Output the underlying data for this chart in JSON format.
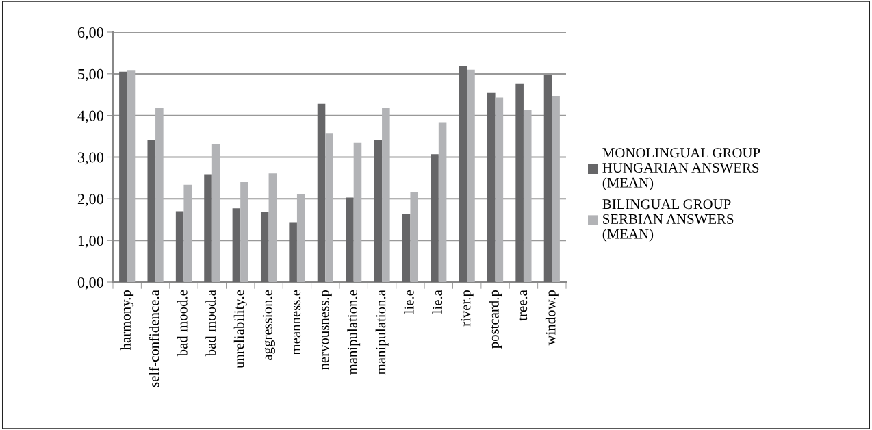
{
  "chart_data": {
    "type": "bar",
    "categories": [
      "harmony.p",
      "self-confidence.a",
      "bad mood.e",
      "bad mood.a",
      "unreliability.e",
      "aggression.e",
      "meanness.e",
      "nervousness.p",
      "manipulation.e",
      "manipulation.a",
      "lie.e",
      "lie.a",
      "river.p",
      "postcard.p",
      "tree.a",
      "window.p"
    ],
    "series": [
      {
        "name": "MONOLINGUAL GROUP HUNGARIAN ANSWERS (MEAN)",
        "color": "#666668",
        "values": [
          5.05,
          3.42,
          1.7,
          2.59,
          1.77,
          1.68,
          1.44,
          4.28,
          2.03,
          3.42,
          1.63,
          3.07,
          5.19,
          4.54,
          4.77,
          4.97
        ]
      },
      {
        "name": "BILINGUAL GROUP SERBIAN ANSWERS (MEAN)",
        "color": "#b2b3b6",
        "values": [
          5.09,
          4.19,
          2.34,
          3.32,
          2.4,
          2.61,
          2.11,
          3.58,
          3.34,
          4.19,
          2.17,
          3.84,
          5.1,
          4.43,
          4.13,
          4.47
        ]
      }
    ],
    "ylim": [
      0,
      6
    ],
    "yticks": [
      {
        "value": 0,
        "label": "0,00"
      },
      {
        "value": 1,
        "label": "1,00"
      },
      {
        "value": 2,
        "label": "2,00"
      },
      {
        "value": 3,
        "label": "3,00"
      },
      {
        "value": 4,
        "label": "4,00"
      },
      {
        "value": 5,
        "label": "5,00"
      },
      {
        "value": 6,
        "label": "6,00"
      }
    ],
    "grid": "y",
    "legend": "right"
  }
}
